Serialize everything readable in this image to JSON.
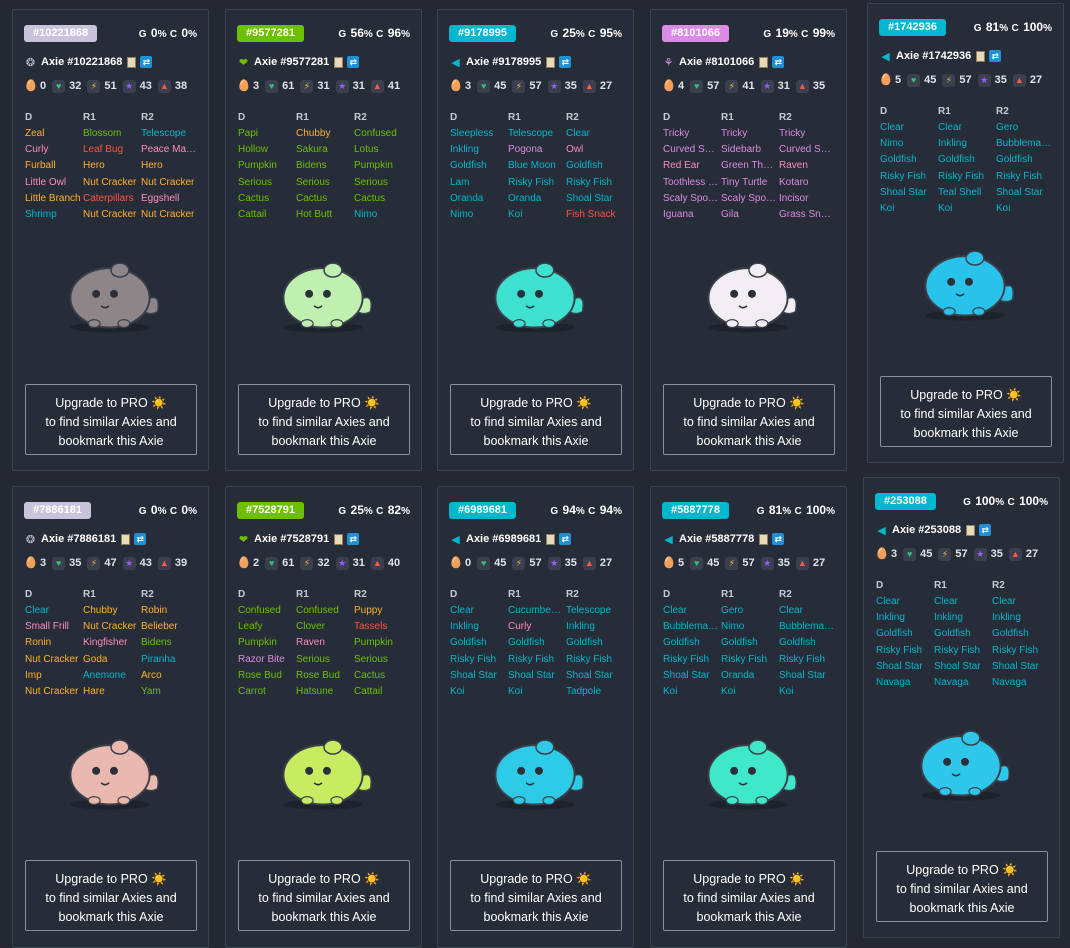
{
  "upgrade": {
    "line1": "Upgrade to PRO ☀️",
    "line2": "to find similar Axies and",
    "line3": "bookmark this Axie"
  },
  "part_headers": [
    "D",
    "R1",
    "R2"
  ],
  "class_colors": {
    "beast": "#ffb02e",
    "plant": "#6cc000",
    "aquatic": "#00b8ce",
    "bird": "#ff8bbd",
    "bug": "#ff5341",
    "reptile": "#dc8be4",
    "mystic": "#d8c8e8"
  },
  "cards": [
    {
      "id": "#10221868",
      "badge_color": "#c9c4dc",
      "class_icon": "mystic-icon",
      "class_glyph": "❂",
      "g": "0",
      "c": "0",
      "name": "Axie #10221868",
      "stats": {
        "breed": "0",
        "hp": "32",
        "speed": "51",
        "skill": "43",
        "morale": "38"
      },
      "body_color": "#8d8588",
      "parts": [
        [
          "Zeal",
          "beast"
        ],
        [
          "Blossom",
          "plant"
        ],
        [
          "Telescope",
          "aquatic"
        ],
        [
          "Curly",
          "bird"
        ],
        [
          "Leaf Bug",
          "bug"
        ],
        [
          "Peace Maker",
          "bird"
        ],
        [
          "Furball",
          "beast"
        ],
        [
          "Hero",
          "beast"
        ],
        [
          "Hero",
          "beast"
        ],
        [
          "Little Owl",
          "bird"
        ],
        [
          "Nut Cracker",
          "beast"
        ],
        [
          "Nut Cracker",
          "beast"
        ],
        [
          "Little Branch",
          "beast"
        ],
        [
          "Caterpillars",
          "bug"
        ],
        [
          "Eggshell",
          "bird"
        ],
        [
          "Shrimp",
          "aquatic"
        ],
        [
          "Nut Cracker",
          "beast"
        ],
        [
          "Nut Cracker",
          "beast"
        ]
      ]
    },
    {
      "id": "#9577281",
      "badge_color": "#6cc000",
      "class_icon": "plant-icon",
      "class_glyph": "❤",
      "g": "56",
      "c": "96",
      "name": "Axie #9577281",
      "stats": {
        "breed": "3",
        "hp": "61",
        "speed": "31",
        "skill": "31",
        "morale": "41"
      },
      "body_color": "#bff0b0",
      "parts": [
        [
          "Papi",
          "plant"
        ],
        [
          "Chubby",
          "beast"
        ],
        [
          "Confused",
          "plant"
        ],
        [
          "Hollow",
          "plant"
        ],
        [
          "Sakura",
          "plant"
        ],
        [
          "Lotus",
          "plant"
        ],
        [
          "Pumpkin",
          "plant"
        ],
        [
          "Bidens",
          "plant"
        ],
        [
          "Pumpkin",
          "plant"
        ],
        [
          "Serious",
          "plant"
        ],
        [
          "Serious",
          "plant"
        ],
        [
          "Serious",
          "plant"
        ],
        [
          "Cactus",
          "plant"
        ],
        [
          "Cactus",
          "plant"
        ],
        [
          "Cactus",
          "plant"
        ],
        [
          "Cattail",
          "plant"
        ],
        [
          "Hot Butt",
          "plant"
        ],
        [
          "Nimo",
          "aquatic"
        ]
      ]
    },
    {
      "id": "#9178995",
      "badge_color": "#00b8ce",
      "class_icon": "aquatic-icon",
      "class_glyph": "◀",
      "g": "25",
      "c": "95",
      "name": "Axie #9178995",
      "stats": {
        "breed": "3",
        "hp": "45",
        "speed": "57",
        "skill": "35",
        "morale": "27"
      },
      "body_color": "#3ee0d0",
      "parts": [
        [
          "Sleepless",
          "aquatic"
        ],
        [
          "Telescope",
          "aquatic"
        ],
        [
          "Clear",
          "aquatic"
        ],
        [
          "Inkling",
          "aquatic"
        ],
        [
          "Pogona",
          "reptile"
        ],
        [
          "Owl",
          "bird"
        ],
        [
          "Goldfish",
          "aquatic"
        ],
        [
          "Blue Moon",
          "aquatic"
        ],
        [
          "Goldfish",
          "aquatic"
        ],
        [
          "Lam",
          "aquatic"
        ],
        [
          "Risky Fish",
          "aquatic"
        ],
        [
          "Risky Fish",
          "aquatic"
        ],
        [
          "Oranda",
          "aquatic"
        ],
        [
          "Oranda",
          "aquatic"
        ],
        [
          "Shoal Star",
          "aquatic"
        ],
        [
          "Nimo",
          "aquatic"
        ],
        [
          "Koi",
          "aquatic"
        ],
        [
          "Fish Snack",
          "bug"
        ]
      ]
    },
    {
      "id": "#8101066",
      "badge_color": "#dc8be4",
      "class_icon": "reptile-icon",
      "class_glyph": "⚘",
      "g": "19",
      "c": "99",
      "name": "Axie #8101066",
      "stats": {
        "breed": "4",
        "hp": "57",
        "speed": "41",
        "skill": "31",
        "morale": "35"
      },
      "body_color": "#f2eef4",
      "parts": [
        [
          "Tricky",
          "reptile"
        ],
        [
          "Tricky",
          "reptile"
        ],
        [
          "Tricky",
          "reptile"
        ],
        [
          "Curved Spine",
          "reptile"
        ],
        [
          "Sidebarb",
          "reptile"
        ],
        [
          "Curved Spine",
          "reptile"
        ],
        [
          "Red Ear",
          "bird"
        ],
        [
          "Green Thorns",
          "reptile"
        ],
        [
          "Raven",
          "bird"
        ],
        [
          "Toothless Bite",
          "reptile"
        ],
        [
          "Tiny Turtle",
          "reptile"
        ],
        [
          "Kotaro",
          "reptile"
        ],
        [
          "Scaly Spoon",
          "reptile"
        ],
        [
          "Scaly Spoon",
          "reptile"
        ],
        [
          "Incisor",
          "reptile"
        ],
        [
          "Iguana",
          "reptile"
        ],
        [
          "Gila",
          "reptile"
        ],
        [
          "Grass Snake",
          "reptile"
        ]
      ]
    },
    {
      "id": "#1742936",
      "badge_color": "#00b8ce",
      "class_icon": "aquatic-icon",
      "class_glyph": "◀",
      "g": "81",
      "c": "100",
      "name": "Axie #1742936",
      "stats": {
        "breed": "5",
        "hp": "45",
        "speed": "57",
        "skill": "35",
        "morale": "27"
      },
      "body_color": "#28c2ea",
      "parts": [
        [
          "Clear",
          "aquatic"
        ],
        [
          "Clear",
          "aquatic"
        ],
        [
          "Gero",
          "aquatic"
        ],
        [
          "Nimo",
          "aquatic"
        ],
        [
          "Inkling",
          "aquatic"
        ],
        [
          "Bubblemaker",
          "aquatic"
        ],
        [
          "Goldfish",
          "aquatic"
        ],
        [
          "Goldfish",
          "aquatic"
        ],
        [
          "Goldfish",
          "aquatic"
        ],
        [
          "Risky Fish",
          "aquatic"
        ],
        [
          "Risky Fish",
          "aquatic"
        ],
        [
          "Risky Fish",
          "aquatic"
        ],
        [
          "Shoal Star",
          "aquatic"
        ],
        [
          "Teal Shell",
          "aquatic"
        ],
        [
          "Shoal Star",
          "aquatic"
        ],
        [
          "Koi",
          "aquatic"
        ],
        [
          "Koi",
          "aquatic"
        ],
        [
          "Koi",
          "aquatic"
        ]
      ]
    },
    {
      "id": "#7886181",
      "badge_color": "#c9c4dc",
      "class_icon": "mystic-icon",
      "class_glyph": "❂",
      "g": "0",
      "c": "0",
      "name": "Axie #7886181",
      "stats": {
        "breed": "3",
        "hp": "35",
        "speed": "47",
        "skill": "43",
        "morale": "39"
      },
      "body_color": "#e9b8ae",
      "parts": [
        [
          "Clear",
          "aquatic"
        ],
        [
          "Chubby",
          "beast"
        ],
        [
          "Robin",
          "beast"
        ],
        [
          "Small Frill",
          "bird"
        ],
        [
          "Nut Cracker",
          "beast"
        ],
        [
          "Belieber",
          "beast"
        ],
        [
          "Ronin",
          "beast"
        ],
        [
          "Kingfisher",
          "bird"
        ],
        [
          "Bidens",
          "plant"
        ],
        [
          "Nut Cracker",
          "beast"
        ],
        [
          "Goda",
          "beast"
        ],
        [
          "Piranha",
          "aquatic"
        ],
        [
          "Imp",
          "beast"
        ],
        [
          "Anemone",
          "aquatic"
        ],
        [
          "Arco",
          "beast"
        ],
        [
          "Nut Cracker",
          "beast"
        ],
        [
          "Hare",
          "beast"
        ],
        [
          "Yam",
          "plant"
        ]
      ]
    },
    {
      "id": "#7528791",
      "badge_color": "#6cc000",
      "class_icon": "plant-icon",
      "class_glyph": "❤",
      "g": "25",
      "c": "82",
      "name": "Axie #7528791",
      "stats": {
        "breed": "2",
        "hp": "61",
        "speed": "32",
        "skill": "31",
        "morale": "40"
      },
      "body_color": "#c8ec60",
      "parts": [
        [
          "Confused",
          "plant"
        ],
        [
          "Confused",
          "plant"
        ],
        [
          "Puppy",
          "beast"
        ],
        [
          "Leafy",
          "plant"
        ],
        [
          "Clover",
          "plant"
        ],
        [
          "Tassels",
          "bug"
        ],
        [
          "Pumpkin",
          "plant"
        ],
        [
          "Raven",
          "bird"
        ],
        [
          "Pumpkin",
          "plant"
        ],
        [
          "Razor Bite",
          "reptile"
        ],
        [
          "Serious",
          "plant"
        ],
        [
          "Serious",
          "plant"
        ],
        [
          "Rose Bud",
          "plant"
        ],
        [
          "Rose Bud",
          "plant"
        ],
        [
          "Cactus",
          "plant"
        ],
        [
          "Carrot",
          "plant"
        ],
        [
          "Hatsune",
          "plant"
        ],
        [
          "Cattail",
          "plant"
        ]
      ]
    },
    {
      "id": "#6989681",
      "badge_color": "#00b8ce",
      "class_icon": "aquatic-icon",
      "class_glyph": "◀",
      "g": "94",
      "c": "94",
      "name": "Axie #6989681",
      "stats": {
        "breed": "0",
        "hp": "45",
        "speed": "57",
        "skill": "35",
        "morale": "27"
      },
      "body_color": "#2ecbe8",
      "parts": [
        [
          "Clear",
          "aquatic"
        ],
        [
          "Cucumber Slice",
          "aquatic"
        ],
        [
          "Telescope",
          "aquatic"
        ],
        [
          "Inkling",
          "aquatic"
        ],
        [
          "Curly",
          "bird"
        ],
        [
          "Inkling",
          "aquatic"
        ],
        [
          "Goldfish",
          "aquatic"
        ],
        [
          "Goldfish",
          "aquatic"
        ],
        [
          "Goldfish",
          "aquatic"
        ],
        [
          "Risky Fish",
          "aquatic"
        ],
        [
          "Risky Fish",
          "aquatic"
        ],
        [
          "Risky Fish",
          "aquatic"
        ],
        [
          "Shoal Star",
          "aquatic"
        ],
        [
          "Shoal Star",
          "aquatic"
        ],
        [
          "Shoal Star",
          "aquatic"
        ],
        [
          "Koi",
          "aquatic"
        ],
        [
          "Koi",
          "aquatic"
        ],
        [
          "Tadpole",
          "aquatic"
        ]
      ]
    },
    {
      "id": "#5887778",
      "badge_color": "#00b8ce",
      "class_icon": "aquatic-icon",
      "class_glyph": "◀",
      "g": "81",
      "c": "100",
      "name": "Axie #5887778",
      "stats": {
        "breed": "5",
        "hp": "45",
        "speed": "57",
        "skill": "35",
        "morale": "27"
      },
      "body_color": "#3ee8c8",
      "parts": [
        [
          "Clear",
          "aquatic"
        ],
        [
          "Gero",
          "aquatic"
        ],
        [
          "Clear",
          "aquatic"
        ],
        [
          "Bubblemaker",
          "aquatic"
        ],
        [
          "Nimo",
          "aquatic"
        ],
        [
          "Bubblemaker",
          "aquatic"
        ],
        [
          "Goldfish",
          "aquatic"
        ],
        [
          "Goldfish",
          "aquatic"
        ],
        [
          "Goldfish",
          "aquatic"
        ],
        [
          "Risky Fish",
          "aquatic"
        ],
        [
          "Risky Fish",
          "aquatic"
        ],
        [
          "Risky Fish",
          "aquatic"
        ],
        [
          "Shoal Star",
          "aquatic"
        ],
        [
          "Oranda",
          "aquatic"
        ],
        [
          "Shoal Star",
          "aquatic"
        ],
        [
          "Koi",
          "aquatic"
        ],
        [
          "Koi",
          "aquatic"
        ],
        [
          "Koi",
          "aquatic"
        ]
      ]
    },
    {
      "id": "#253088",
      "badge_color": "#00b8ce",
      "class_icon": "aquatic-icon",
      "class_glyph": "◀",
      "g": "100",
      "c": "100",
      "name": "Axie #253088",
      "stats": {
        "breed": "3",
        "hp": "45",
        "speed": "57",
        "skill": "35",
        "morale": "27"
      },
      "body_color": "#2ec6ea",
      "parts": [
        [
          "Clear",
          "aquatic"
        ],
        [
          "Clear",
          "aquatic"
        ],
        [
          "Clear",
          "aquatic"
        ],
        [
          "Inkling",
          "aquatic"
        ],
        [
          "Inkling",
          "aquatic"
        ],
        [
          "Inkling",
          "aquatic"
        ],
        [
          "Goldfish",
          "aquatic"
        ],
        [
          "Goldfish",
          "aquatic"
        ],
        [
          "Goldfish",
          "aquatic"
        ],
        [
          "Risky Fish",
          "aquatic"
        ],
        [
          "Risky Fish",
          "aquatic"
        ],
        [
          "Risky Fish",
          "aquatic"
        ],
        [
          "Shoal Star",
          "aquatic"
        ],
        [
          "Shoal Star",
          "aquatic"
        ],
        [
          "Shoal Star",
          "aquatic"
        ],
        [
          "Navaga",
          "aquatic"
        ],
        [
          "Navaga",
          "aquatic"
        ],
        [
          "Navaga",
          "aquatic"
        ]
      ]
    }
  ]
}
